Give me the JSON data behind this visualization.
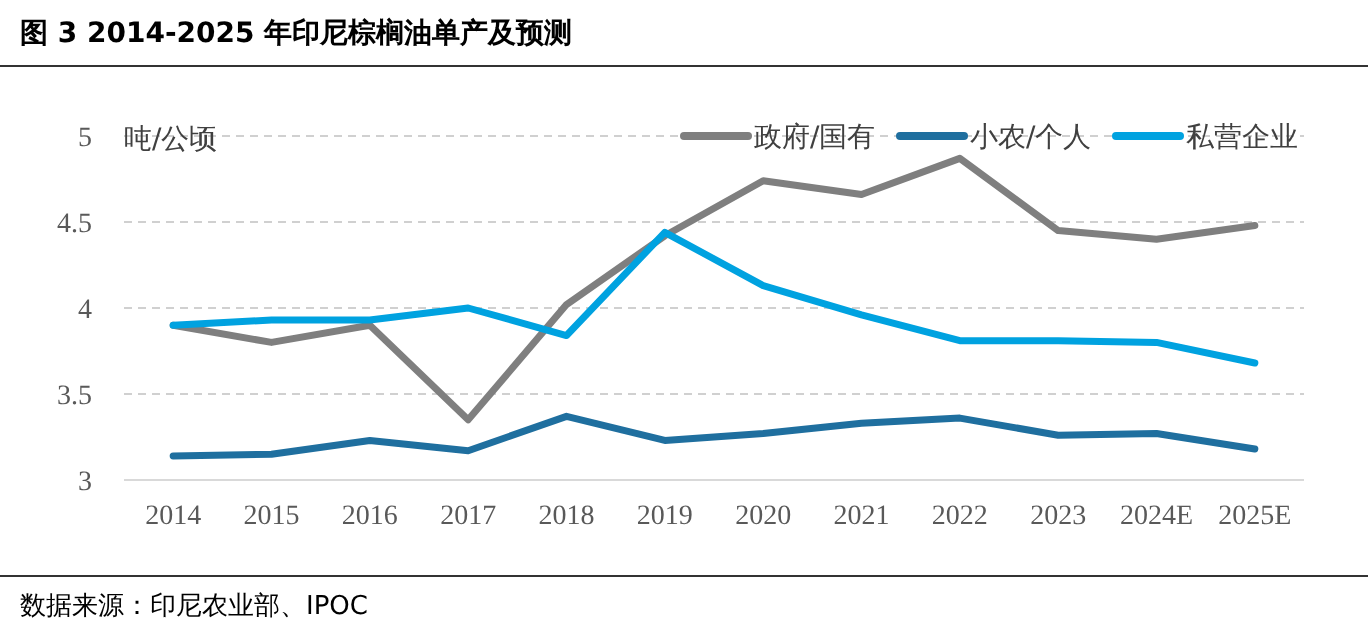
{
  "chart_data": {
    "type": "line",
    "title": "图 3 2014-2025 年印尼棕榈油单产及预测",
    "ylabel": "吨/公顷",
    "categories": [
      "2014",
      "2015",
      "2016",
      "2017",
      "2018",
      "2019",
      "2020",
      "2021",
      "2022",
      "2023",
      "2024E",
      "2025E"
    ],
    "series": [
      {
        "name": "政府/国有",
        "color": "#7f7f7f",
        "values": [
          3.9,
          3.8,
          3.9,
          3.35,
          4.02,
          4.42,
          4.74,
          4.66,
          4.87,
          4.45,
          4.4,
          4.48
        ]
      },
      {
        "name": "小农/个人",
        "color": "#1f6f9f",
        "values": [
          3.14,
          3.15,
          3.23,
          3.17,
          3.37,
          3.23,
          3.27,
          3.33,
          3.36,
          3.26,
          3.27,
          3.18
        ]
      },
      {
        "name": "私营企业",
        "color": "#00a2e0",
        "values": [
          3.9,
          3.93,
          3.93,
          4.0,
          3.84,
          4.44,
          4.13,
          3.96,
          3.81,
          3.81,
          3.8,
          3.68
        ]
      }
    ],
    "ylim": [
      3,
      5
    ],
    "yticks": [
      3,
      3.5,
      4,
      4.5,
      5
    ],
    "grid": "y",
    "legend": "top right",
    "marker": "none",
    "line_style": "solid",
    "annotations": [
      "数据来源：印尼农业部、IPOC"
    ]
  }
}
